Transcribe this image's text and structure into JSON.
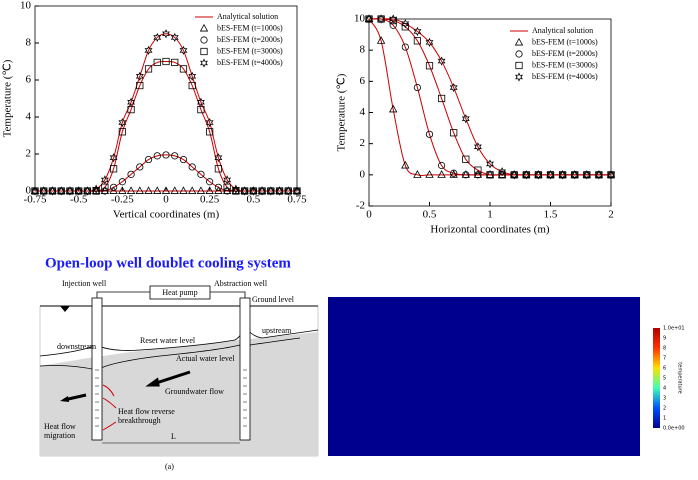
{
  "chart_data": [
    {
      "type": "line",
      "xlabel": "Vertical coordinates (m)",
      "ylabel": "Temperature (℃)",
      "xlim": [
        -0.75,
        0.75
      ],
      "xticks": [
        -0.75,
        -0.5,
        -0.25,
        0,
        0.25,
        0.5,
        0.75
      ],
      "ylim": [
        0,
        10
      ],
      "yticks": [
        0,
        2,
        4,
        6,
        8,
        10
      ],
      "legend": "upper right",
      "x": [
        -0.75,
        -0.7,
        -0.65,
        -0.6,
        -0.55,
        -0.5,
        -0.45,
        -0.4,
        -0.35,
        -0.3,
        -0.25,
        -0.2,
        -0.15,
        -0.1,
        -0.05,
        0,
        0.05,
        0.1,
        0.15,
        0.2,
        0.25,
        0.3,
        0.35,
        0.4,
        0.45,
        0.5,
        0.55,
        0.6,
        0.65,
        0.7,
        0.75
      ],
      "series": [
        {
          "name": "Analytical solution",
          "color": "#cc0000"
        },
        {
          "name": "bES-FEM (t=1000s)",
          "color": "#000000",
          "marker": "triangle",
          "values": [
            0,
            0,
            0,
            0,
            0,
            0,
            0,
            0,
            0,
            0,
            0,
            0,
            0,
            0,
            0,
            0,
            0,
            0,
            0,
            0,
            0,
            0,
            0,
            0,
            0,
            0,
            0,
            0,
            0,
            0,
            0
          ]
        },
        {
          "name": "bES-FEM (t=2000s)",
          "color": "#000000",
          "marker": "circle",
          "values": [
            0,
            0,
            0,
            0,
            0,
            0,
            0,
            0,
            0,
            0.2,
            0.5,
            0.9,
            1.3,
            1.7,
            1.9,
            1.95,
            1.9,
            1.7,
            1.3,
            0.9,
            0.5,
            0.2,
            0,
            0,
            0,
            0,
            0,
            0,
            0,
            0,
            0
          ]
        },
        {
          "name": "bES-FEM (t=3000s)",
          "color": "#000000",
          "marker": "square",
          "values": [
            0,
            0,
            0,
            0,
            0,
            0,
            0,
            0,
            0.2,
            1.2,
            3.2,
            4.4,
            5.7,
            6.6,
            6.95,
            7.0,
            6.95,
            6.6,
            5.7,
            4.4,
            3.2,
            1.2,
            0.2,
            0,
            0,
            0,
            0,
            0,
            0,
            0,
            0
          ]
        },
        {
          "name": "bES-FEM (t=4000s)",
          "color": "#000000",
          "marker": "star",
          "values": [
            0,
            0,
            0,
            0,
            0,
            0,
            0,
            0.1,
            0.6,
            1.8,
            3.7,
            4.8,
            6.2,
            7.6,
            8.3,
            8.5,
            8.3,
            7.6,
            6.2,
            4.8,
            3.7,
            1.8,
            0.6,
            0.1,
            0,
            0,
            0,
            0,
            0,
            0,
            0
          ]
        }
      ]
    },
    {
      "type": "line",
      "xlabel": "Horizontal coordinates (m)",
      "ylabel": "Temperature (℃)",
      "xlim": [
        0,
        2
      ],
      "xticks": [
        0,
        0.5,
        1,
        1.5,
        2
      ],
      "ylim": [
        -2,
        10
      ],
      "yticks": [
        -2,
        0,
        2,
        4,
        6,
        8,
        10
      ],
      "legend": "upper right",
      "x": [
        0,
        0.1,
        0.2,
        0.3,
        0.4,
        0.5,
        0.6,
        0.7,
        0.8,
        0.9,
        1,
        1.1,
        1.2,
        1.3,
        1.4,
        1.5,
        1.6,
        1.7,
        1.8,
        1.9,
        2
      ],
      "series": [
        {
          "name": "Analytical solution",
          "color": "#cc0000"
        },
        {
          "name": "bES-FEM (t=1000s)",
          "color": "#000000",
          "marker": "triangle",
          "values": [
            10,
            8.6,
            4.2,
            0.6,
            0,
            0,
            0,
            0,
            0,
            0,
            0,
            0,
            0,
            0,
            0,
            0,
            0,
            0,
            0,
            0,
            0
          ]
        },
        {
          "name": "bES-FEM (t=2000s)",
          "color": "#000000",
          "marker": "circle",
          "values": [
            10,
            10,
            9.6,
            8.2,
            5.6,
            2.6,
            0.6,
            0.1,
            0,
            0,
            0,
            0,
            0,
            0,
            0,
            0,
            0,
            0,
            0,
            0,
            0
          ]
        },
        {
          "name": "bES-FEM (t=3000s)",
          "color": "#000000",
          "marker": "square",
          "values": [
            10,
            10,
            9.9,
            9.5,
            8.6,
            7.0,
            4.9,
            2.7,
            1.0,
            0.3,
            0,
            0,
            0,
            0,
            0,
            0,
            0,
            0,
            0,
            0,
            0
          ]
        },
        {
          "name": "bES-FEM (t=4000s)",
          "color": "#000000",
          "marker": "star",
          "values": [
            10,
            10,
            10,
            9.7,
            9.2,
            8.5,
            7.3,
            5.6,
            3.6,
            1.8,
            0.7,
            0.2,
            0,
            0,
            0,
            0,
            0,
            0,
            0,
            0,
            0
          ]
        }
      ]
    }
  ],
  "heading": "Open-loop well doublet cooling system",
  "diagram": {
    "injection_well": "Injection well",
    "heat_pump": "Heat pump",
    "abstraction_well": "Abstraction well",
    "ground_level": "Ground level",
    "downstream": "downstream",
    "upstream": "upstream",
    "reset_water_level": "Reset water level",
    "actual_water_level": "Actual water level",
    "groundwater_flow": "Groundwater flow",
    "heat_flow_reverse": [
      "Heat flow reverse",
      "breakthrough"
    ],
    "heat_flow_migration": [
      "Heat flow",
      "migration"
    ],
    "distance": "L",
    "caption": "(a)"
  },
  "contour": {
    "colorbar_labels": [
      "1.0e+01",
      "9",
      "8",
      "7",
      "6",
      "5",
      "4",
      "3",
      "2",
      "1",
      "0.0e+00"
    ],
    "colorbar_title": "temperature"
  }
}
